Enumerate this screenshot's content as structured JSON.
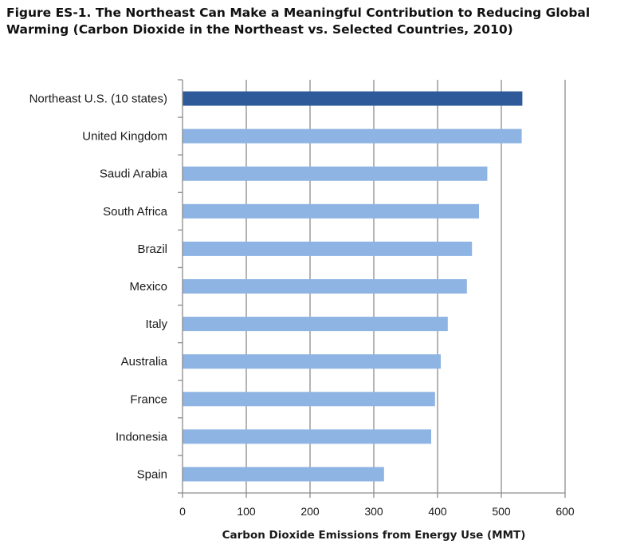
{
  "figure": {
    "title_line1": "Figure ES-1. The Northeast Can Make a Meaningful Contribution to Reducing Global",
    "title_line2": "Warming (Carbon Dioxide in the Northeast vs. Selected Countries, 2010)"
  },
  "chart_data": {
    "type": "bar",
    "orientation": "horizontal",
    "categories": [
      "Northeast U.S. (10 states)",
      "United Kingdom",
      "Saudi Arabia",
      "South Africa",
      "Brazil",
      "Mexico",
      "Italy",
      "Australia",
      "France",
      "Indonesia",
      "Spain"
    ],
    "values": [
      533,
      532,
      478,
      465,
      454,
      446,
      416,
      405,
      396,
      390,
      316
    ],
    "highlight_index": 0,
    "xlabel": "Carbon Dioxide Emissions from Energy Use (MMT)",
    "ylabel": "",
    "xlim": [
      0,
      600
    ],
    "xticks": [
      0,
      100,
      200,
      300,
      400,
      500,
      600
    ],
    "grid": "vertical",
    "colors": {
      "highlight": "#2e5a9a",
      "bar": "#8eb4e3",
      "grid": "#8c8c8c",
      "axis": "#8c8c8c"
    }
  }
}
